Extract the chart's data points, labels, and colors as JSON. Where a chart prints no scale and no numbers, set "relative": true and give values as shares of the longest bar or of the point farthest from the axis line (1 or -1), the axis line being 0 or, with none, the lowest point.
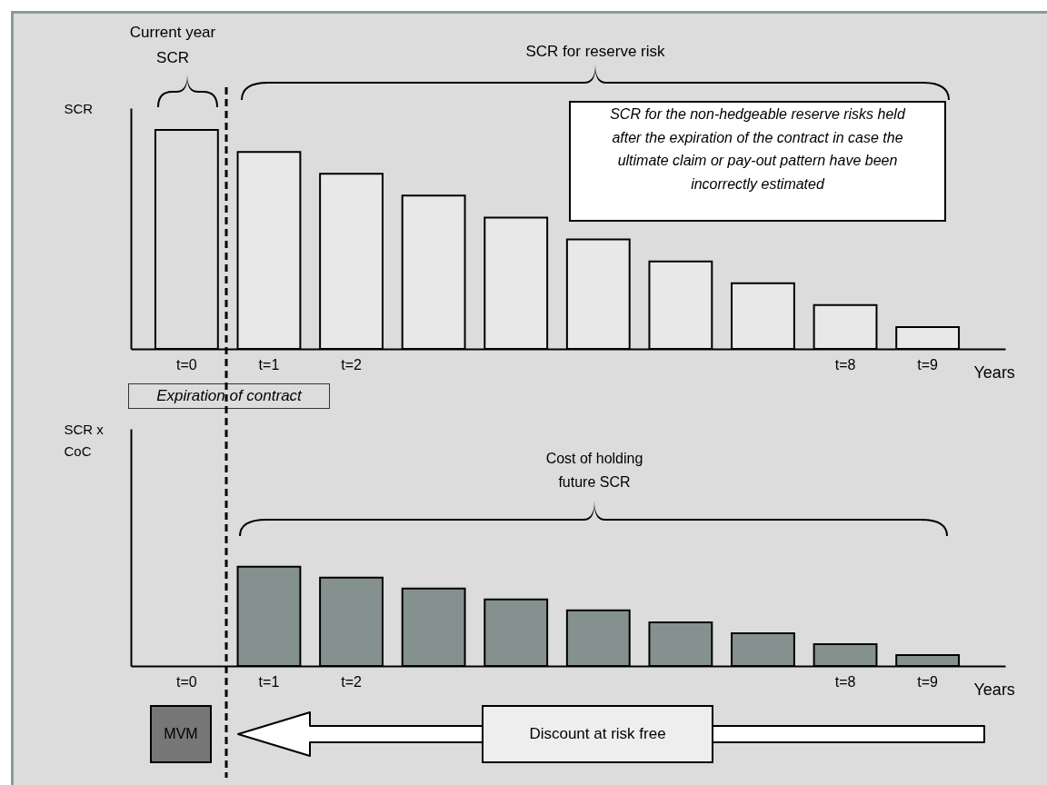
{
  "chart_data": [
    {
      "type": "bar",
      "relative": true,
      "categories": [
        "t=0",
        "t=1",
        "t=2",
        null,
        null,
        null,
        null,
        null,
        "t=8",
        "t=9"
      ],
      "values": [
        1,
        0.9,
        0.8,
        0.7,
        0.6,
        0.5,
        0.4,
        0.3,
        0.2,
        0.1
      ],
      "colors": [
        "#dcdcdc",
        "#e8e8e8",
        "#e8e8e8",
        "#e8e8e8",
        "#e8e8e8",
        "#e8e8e8",
        "#e8e8e8",
        "#e8e8e8",
        "#e8e8e8",
        "#e8e8e8"
      ],
      "xlabel": "Years",
      "ylabel": "SCR",
      "annotations": [
        "Current year SCR",
        "SCR for reserve risk",
        "SCR for the non-hedgeable reserve risks held after the expiration of the contract in case the ultimate claim or pay-out pattern have been incorrectly estimated",
        "Expiration of contract"
      ]
    },
    {
      "type": "bar",
      "relative": true,
      "categories": [
        "t=0",
        "t=1",
        "t=2",
        null,
        null,
        null,
        null,
        null,
        "t=8",
        "t=9"
      ],
      "values": [
        null,
        1,
        0.89,
        0.78,
        0.67,
        0.56,
        0.44,
        0.33,
        0.22,
        0.11
      ],
      "colors": [
        "#85918f",
        "#85918f",
        "#85918f",
        "#85918f",
        "#85918f",
        "#85918f",
        "#85918f",
        "#85918f",
        "#85918f",
        "#85918f"
      ],
      "xlabel": "Years",
      "ylabel": "SCR x CoC",
      "annotations": [
        "Cost of holding future SCR",
        "MVM",
        "Discount at risk free"
      ]
    }
  ]
}
